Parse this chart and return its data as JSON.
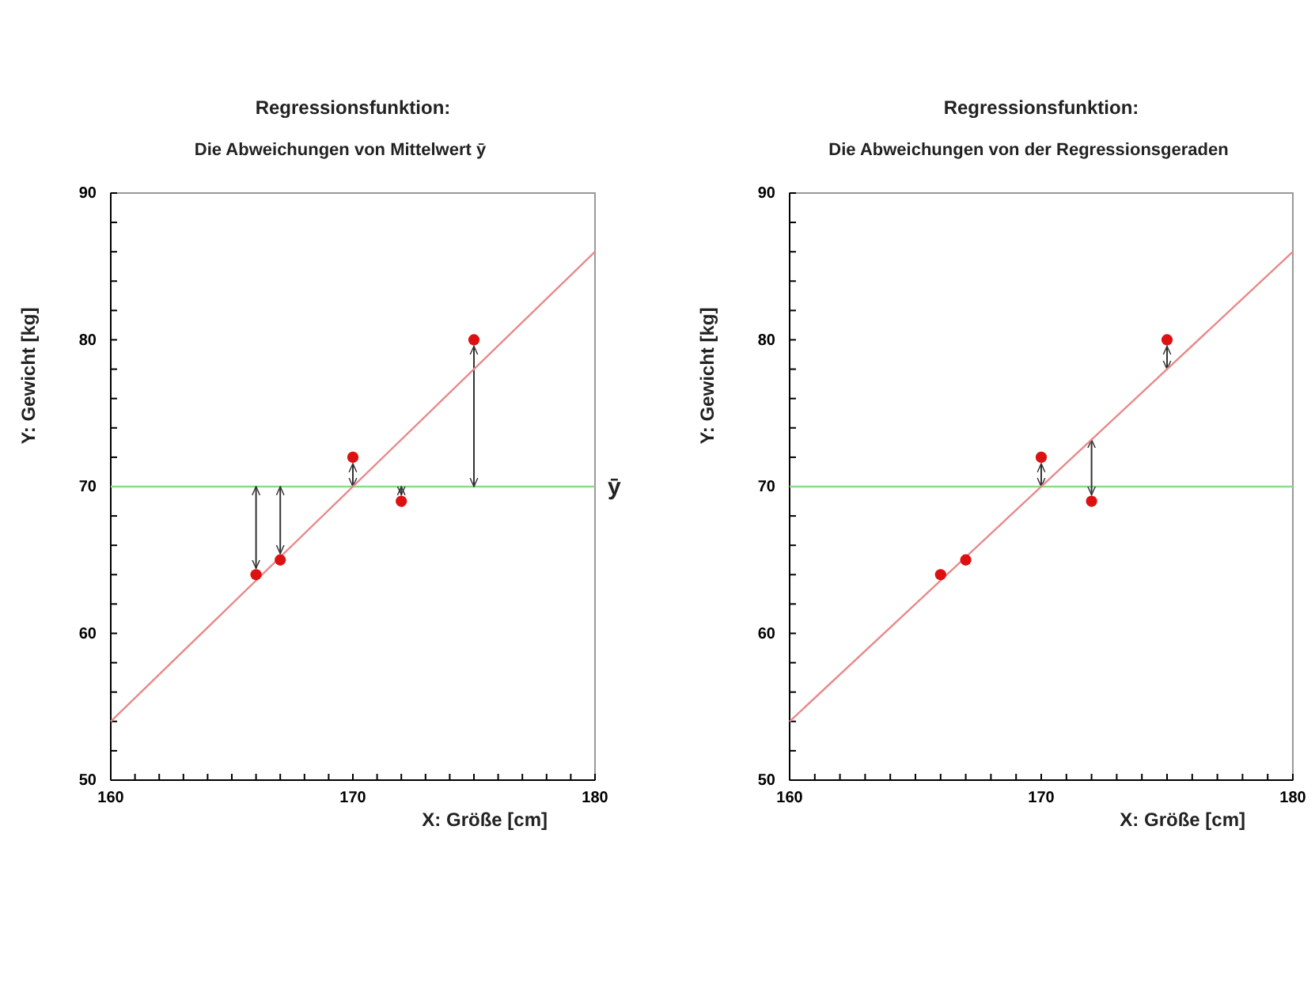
{
  "chart_data": [
    {
      "type": "scatter",
      "title": "Regressionsfunktion:",
      "subtitle": "Die Abweichungen von Mittelwert ȳ",
      "xlabel": "X: Größe [cm]",
      "ylabel": "Y: Gewicht [kg]",
      "xlim": [
        160,
        180
      ],
      "xticks": [
        160,
        {
          "value": 161,
          "label": null
        },
        {
          "value": 162,
          "label": null
        },
        {
          "value": 163,
          "label": null
        },
        {
          "value": 164,
          "label": null
        },
        {
          "value": 165,
          "label": null
        },
        {
          "value": 166,
          "label": null
        },
        {
          "value": 167,
          "label": null
        },
        {
          "value": 168,
          "label": null
        },
        {
          "value": 169,
          "label": null
        },
        170,
        {
          "value": 171,
          "label": null
        },
        {
          "value": 172,
          "label": null
        },
        {
          "value": 173,
          "label": null
        },
        {
          "value": 174,
          "label": null
        },
        {
          "value": 175,
          "label": null
        },
        {
          "value": 176,
          "label": null
        },
        {
          "value": 177,
          "label": null
        },
        {
          "value": 178,
          "label": null
        },
        {
          "value": 179,
          "label": null
        },
        180
      ],
      "ylim": [
        50,
        90
      ],
      "yticks": [
        50,
        {
          "value": 52,
          "label": null
        },
        {
          "value": 54,
          "label": null
        },
        {
          "value": 56,
          "label": null
        },
        {
          "value": 58,
          "label": null
        },
        60,
        {
          "value": 62,
          "label": null
        },
        {
          "value": 64,
          "label": null
        },
        {
          "value": 66,
          "label": null
        },
        {
          "value": 68,
          "label": null
        },
        70,
        {
          "value": 72,
          "label": null
        },
        {
          "value": 74,
          "label": null
        },
        {
          "value": 76,
          "label": null
        },
        {
          "value": 78,
          "label": null
        },
        80,
        {
          "value": 82,
          "label": null
        },
        {
          "value": 84,
          "label": null
        },
        {
          "value": 86,
          "label": null
        },
        {
          "value": 88,
          "label": null
        },
        90
      ],
      "grid": false,
      "series": [
        {
          "type": "line",
          "color": "#e88a8a",
          "x": [
            160,
            180
          ],
          "values": [
            54,
            86
          ],
          "line_style": "solid"
        },
        {
          "color": "#dd1111",
          "marker": "circle",
          "x": [
            166,
            167,
            170,
            172,
            175
          ],
          "values": [
            64,
            65,
            72,
            69,
            80
          ]
        }
      ],
      "ref_lines": [
        {
          "axis": "y",
          "value": 70,
          "label": "ȳ",
          "color": "#88dd88"
        }
      ]
    },
    {
      "type": "scatter",
      "title": "Regressionsfunktion:",
      "subtitle": "Die Abweichungen von der Regressionsgeraden",
      "xlabel": "X: Größe [cm]",
      "ylabel": "Y: Gewicht [kg]",
      "xlim": [
        160,
        180
      ],
      "xticks": [
        160,
        {
          "value": 161,
          "label": null
        },
        {
          "value": 162,
          "label": null
        },
        {
          "value": 163,
          "label": null
        },
        {
          "value": 164,
          "label": null
        },
        {
          "value": 165,
          "label": null
        },
        {
          "value": 166,
          "label": null
        },
        {
          "value": 167,
          "label": null
        },
        {
          "value": 168,
          "label": null
        },
        {
          "value": 169,
          "label": null
        },
        170,
        {
          "value": 171,
          "label": null
        },
        {
          "value": 172,
          "label": null
        },
        {
          "value": 173,
          "label": null
        },
        {
          "value": 174,
          "label": null
        },
        {
          "value": 175,
          "label": null
        },
        {
          "value": 176,
          "label": null
        },
        {
          "value": 177,
          "label": null
        },
        {
          "value": 178,
          "label": null
        },
        {
          "value": 179,
          "label": null
        },
        180
      ],
      "ylim": [
        50,
        90
      ],
      "yticks": [
        50,
        {
          "value": 52,
          "label": null
        },
        {
          "value": 54,
          "label": null
        },
        {
          "value": 56,
          "label": null
        },
        {
          "value": 58,
          "label": null
        },
        60,
        {
          "value": 62,
          "label": null
        },
        {
          "value": 64,
          "label": null
        },
        {
          "value": 66,
          "label": null
        },
        {
          "value": 68,
          "label": null
        },
        70,
        {
          "value": 72,
          "label": null
        },
        {
          "value": 74,
          "label": null
        },
        {
          "value": 76,
          "label": null
        },
        {
          "value": 78,
          "label": null
        },
        80,
        {
          "value": 82,
          "label": null
        },
        {
          "value": 84,
          "label": null
        },
        {
          "value": 86,
          "label": null
        },
        {
          "value": 88,
          "label": null
        },
        90
      ],
      "grid": false,
      "series": [
        {
          "type": "line",
          "color": "#e88a8a",
          "x": [
            160,
            180
          ],
          "values": [
            54,
            86
          ],
          "line_style": "solid"
        },
        {
          "color": "#dd1111",
          "marker": "circle",
          "x": [
            166,
            167,
            170,
            172,
            175
          ],
          "values": [
            64,
            65,
            72,
            69,
            80
          ]
        }
      ],
      "ref_lines": [
        {
          "axis": "y",
          "value": 70,
          "color": "#88dd88"
        }
      ]
    }
  ]
}
